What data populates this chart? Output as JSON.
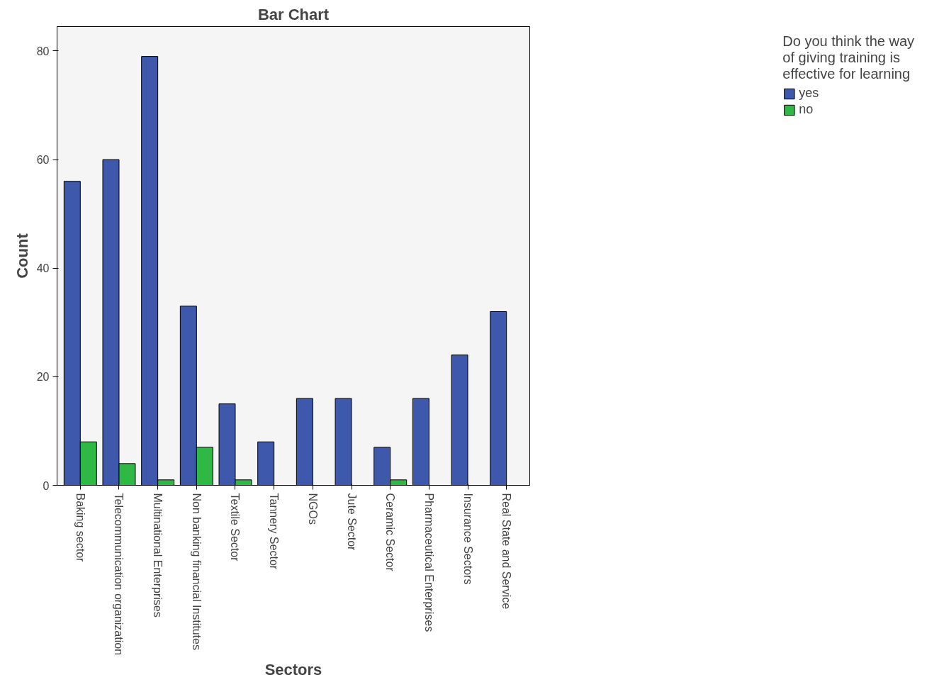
{
  "chart_data": {
    "type": "bar",
    "title": "Bar Chart",
    "xlabel": "Sectors",
    "ylabel": "Count",
    "legend_title": "Do you think the way of giving training is effective for learning",
    "categories": [
      "Baking sector",
      "Telecommunication organization",
      "Multinational Enterprises",
      "Non banking financial Institutes",
      "Textile Sector",
      "Tannery Sector",
      "NGOs",
      "Jute Sector",
      "Ceramic Sector",
      "Pharmaceutical Enterprises",
      "Insurance Sectors",
      "Real State and Service"
    ],
    "series": [
      {
        "name": "yes",
        "color": "#3e58ac",
        "values": [
          56,
          60,
          79,
          33,
          15,
          8,
          16,
          16,
          7,
          16,
          24,
          32
        ]
      },
      {
        "name": "no",
        "color": "#2fb844",
        "values": [
          8,
          4,
          1,
          7,
          1,
          null,
          null,
          null,
          1,
          null,
          null,
          null
        ]
      }
    ],
    "ylim": [
      0,
      84.5
    ],
    "yticks": [
      0,
      20,
      40,
      60,
      80
    ],
    "grid": false,
    "legend": "right"
  }
}
